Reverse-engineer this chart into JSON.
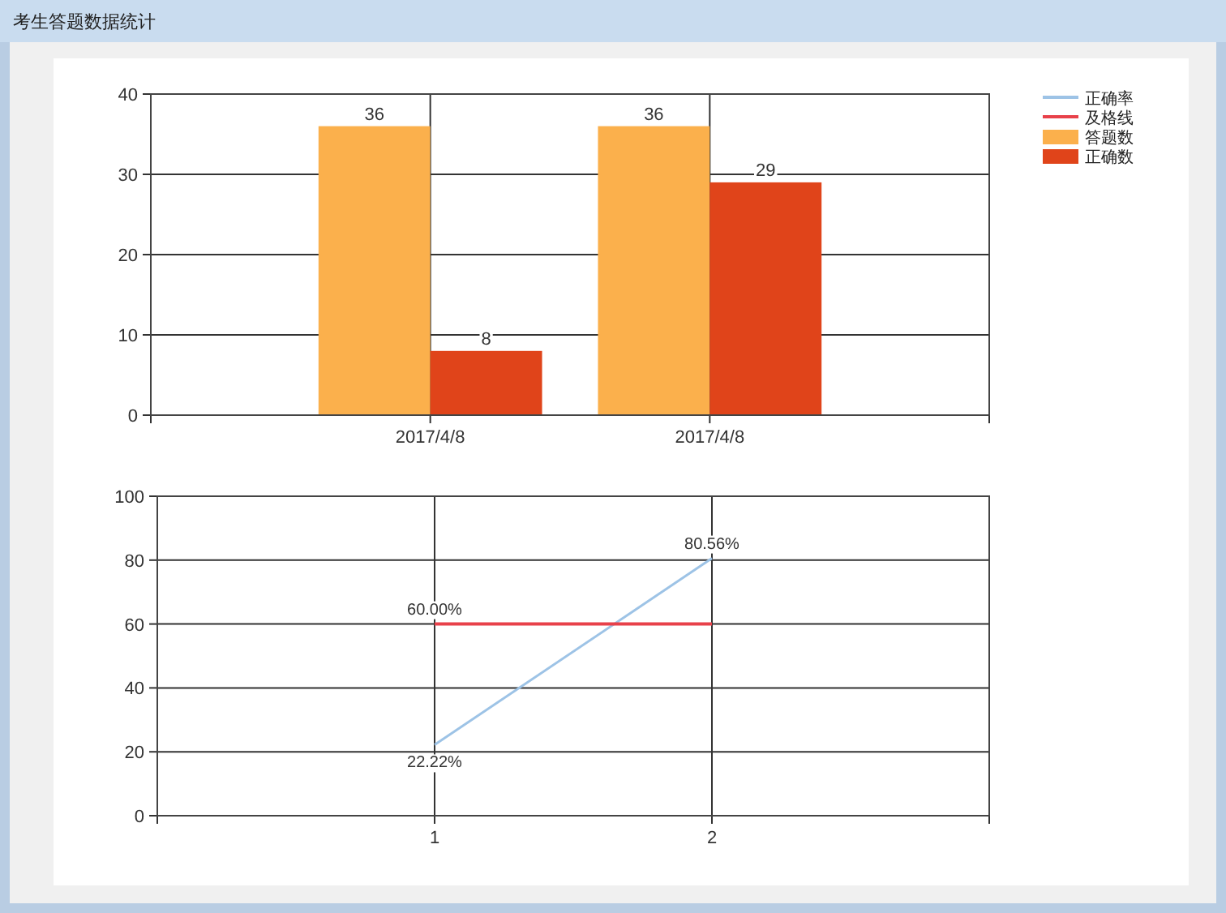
{
  "chart_data": [
    {
      "type": "bar",
      "title": "考生答题数据统计",
      "categories": [
        "2017/4/8",
        "2017/4/8"
      ],
      "series": [
        {
          "name": "答题数",
          "color": "#fbb04c",
          "values": [
            36,
            36
          ]
        },
        {
          "name": "正确数",
          "color": "#e0441a",
          "values": [
            8,
            29
          ]
        }
      ],
      "ylim": [
        0,
        40
      ],
      "yticks": [
        0,
        10,
        20,
        30,
        40
      ],
      "grid": true,
      "legend": "top right",
      "data_labels": true
    },
    {
      "type": "line",
      "x": [
        1,
        2
      ],
      "series": [
        {
          "name": "正确率",
          "color": "#9dc3e6",
          "values": [
            22.22,
            80.56
          ],
          "value_labels": [
            "22.22%",
            "80.56%"
          ]
        },
        {
          "name": "及格线",
          "color": "#e8414a",
          "values": [
            60,
            60
          ],
          "value_labels": [
            "60.00%",
            null
          ]
        }
      ],
      "xlim": [
        0,
        3
      ],
      "xticks": [
        {
          "value": 0,
          "label": null
        },
        1,
        2,
        {
          "value": 3,
          "label": null
        }
      ],
      "ylim": [
        0,
        100
      ],
      "yticks": [
        0,
        20,
        40,
        60,
        80,
        100
      ],
      "grid": true,
      "legend": "top right"
    }
  ]
}
